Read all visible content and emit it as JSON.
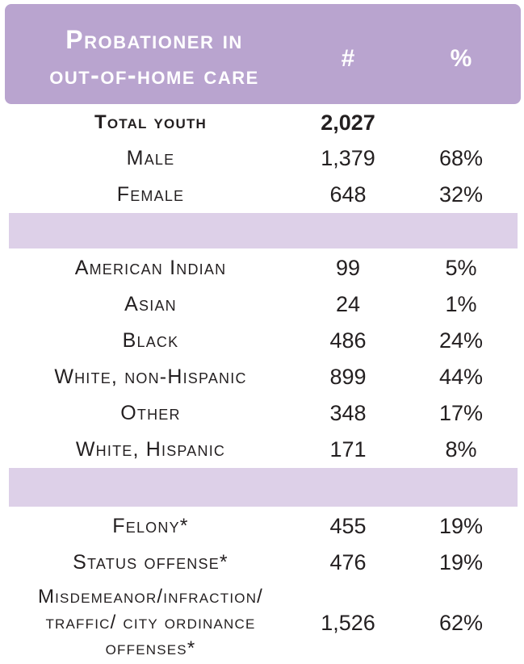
{
  "colors": {
    "header": "#b9a4cf",
    "band": "#ddd0e8",
    "header_text": "#ffffff"
  },
  "header": {
    "title_line1": "Probationer in",
    "title_line2": "out-of-home care",
    "count_label": "#",
    "percent_label": "%"
  },
  "rows": {
    "total": {
      "label": "Total youth",
      "count": "2,027",
      "percent": ""
    },
    "male": {
      "label": "Male",
      "count": "1,379",
      "percent": "68%"
    },
    "female": {
      "label": "Female",
      "count": "648",
      "percent": "32%"
    },
    "american_indian": {
      "label": "American Indian",
      "count": "99",
      "percent": "5%"
    },
    "asian": {
      "label": "Asian",
      "count": "24",
      "percent": "1%"
    },
    "black": {
      "label": "Black",
      "count": "486",
      "percent": "24%"
    },
    "white_non_hispanic": {
      "label": "White, non-Hispanic",
      "count": "899",
      "percent": "44%"
    },
    "other": {
      "label": "Other",
      "count": "348",
      "percent": "17%"
    },
    "white_hispanic": {
      "label": "White, Hispanic",
      "count": "171",
      "percent": "8%"
    },
    "felony": {
      "label": "Felony*",
      "count": "455",
      "percent": "19%"
    },
    "status_offense": {
      "label": "Status offense*",
      "count": "476",
      "percent": "19%"
    },
    "misdemeanor": {
      "label_line1": "Misdemeanor/infraction/",
      "label_line2": "traffic/ city ordinance",
      "label_line3": "offenses*",
      "count": "1,526",
      "percent": "62%"
    }
  }
}
